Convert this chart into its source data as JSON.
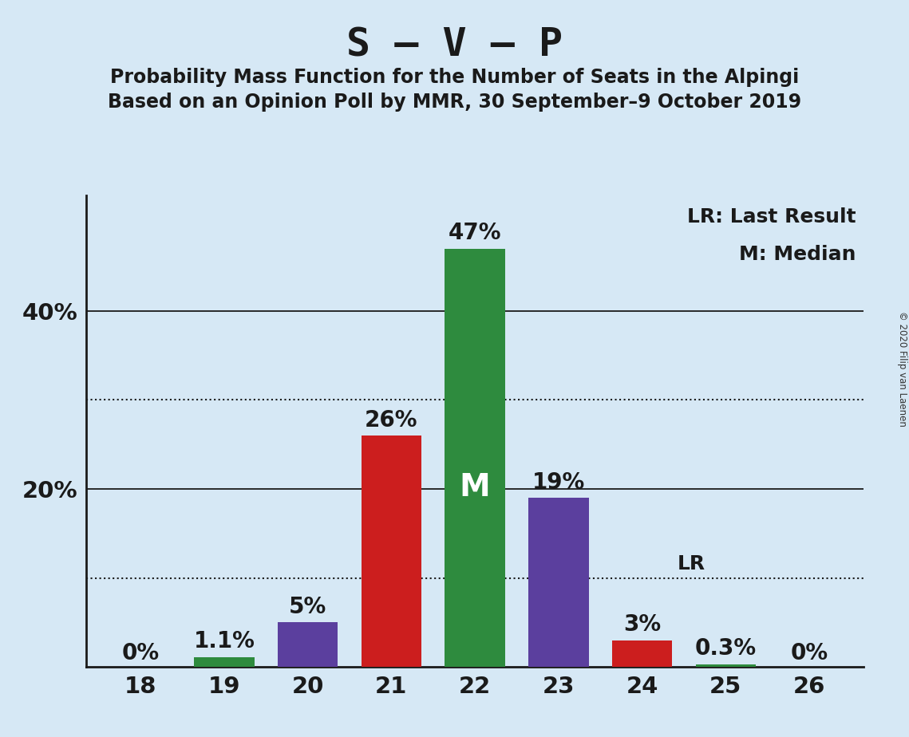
{
  "title": "S – V – P",
  "subtitle1": "Probability Mass Function for the Number of Seats in the Alpingi",
  "subtitle2": "Based on an Opinion Poll by MMR, 30 September–9 October 2019",
  "copyright": "© 2020 Filip van Laenen",
  "seats": [
    18,
    19,
    20,
    21,
    22,
    23,
    24,
    25,
    26
  ],
  "values": [
    0.0,
    1.1,
    5.0,
    26.0,
    47.0,
    19.0,
    3.0,
    0.3,
    0.0
  ],
  "labels": [
    "0%",
    "1.1%",
    "5%",
    "26%",
    "47%",
    "19%",
    "3%",
    "0.3%",
    "0%"
  ],
  "colors": [
    "#2e8b3e",
    "#2e8b3e",
    "#5b3f9e",
    "#cc1e1e",
    "#2e8b3e",
    "#5b3f9e",
    "#cc1e1e",
    "#2e8b3e",
    "#2e8b3e"
  ],
  "background_color": "#d6e8f5",
  "median_seat": 22,
  "median_label": "M",
  "lr_seat": 24,
  "lr_label": "LR",
  "lr_line_y": 10.0,
  "solid_gridlines": [
    20,
    40
  ],
  "dotted_gridlines": [
    10,
    30
  ],
  "ytick_positions": [
    20,
    40
  ],
  "ytick_labels": [
    "20%",
    "40%"
  ],
  "title_fontsize": 36,
  "subtitle_fontsize": 17,
  "label_fontsize": 20,
  "axis_fontsize": 21,
  "legend_fontsize": 18,
  "median_fontsize": 28,
  "lr_fontsize": 18,
  "xlim": [
    17.35,
    26.65
  ],
  "ylim": [
    0,
    53
  ],
  "bar_width": 0.72
}
